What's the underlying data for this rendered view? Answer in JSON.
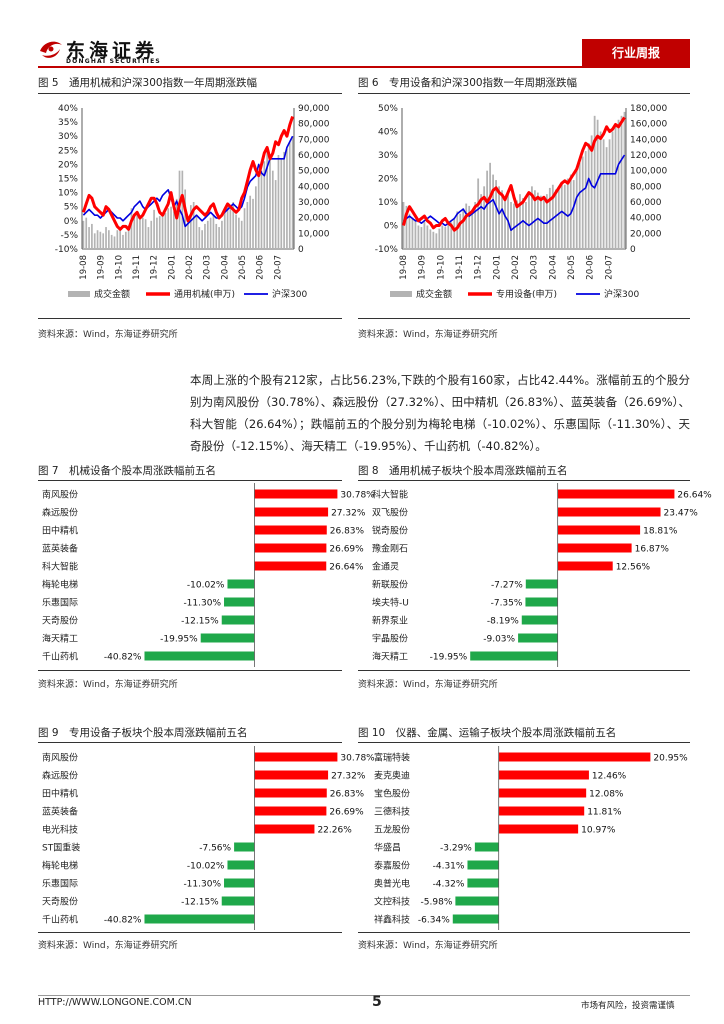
{
  "header": {
    "company_cn": "东海证券",
    "company_en": "DONGHAI SECURITIES",
    "report_type": "行业周报"
  },
  "paragraph": "本周上涨的个股有212家，占比56.23%,下跌的个股有160家，占比42.44%。涨幅前五的个股分别为南风股份（30.78%）、森远股份（27.32%）、田中精机（26.83%）、蓝英装备（26.69%）、科大智能（26.64%）；跌幅前五的个股分别为梅轮电梯（-10.02%）、乐惠国际（-11.30%）、天奇股份（-12.15%）、海天精工（-19.95%）、千山药机（-40.82%）。",
  "footer": {
    "url": "HTTP://WWW.LONGONE.COM.CN",
    "page": "5",
    "disclaimer": "市场有风险，投资需谨慎"
  },
  "colors": {
    "red": "#ff0000",
    "green": "#1fa84a",
    "blue": "#0000e0",
    "gray": "#b3b3b3",
    "accent": "#c00000"
  },
  "chart_data": [
    {
      "id": "fig5",
      "title": "图 5　通用机械和沪深300指数一年周期涨跌幅",
      "source": "资料来源：Wind，东海证券研究所",
      "type": "line",
      "x_ticks": [
        "19-08",
        "19-09",
        "19-10",
        "19-11",
        "19-12",
        "20-01",
        "20-02",
        "20-03",
        "20-04",
        "20-05",
        "20-06",
        "20-07"
      ],
      "y_left": {
        "min": -10,
        "max": 40,
        "step": 5,
        "format": "pct"
      },
      "y_right": {
        "min": 0,
        "max": 90000,
        "step": 10000,
        "format": "num"
      },
      "legend": [
        "成交金额",
        "通用机械(申万)",
        "沪深300"
      ],
      "series": [
        {
          "name": "成交金额",
          "axis": "right",
          "kind": "bar",
          "values": [
            18000,
            20000,
            14000,
            16000,
            10000,
            12000,
            11000,
            10000,
            14000,
            12000,
            9000,
            8000,
            12000,
            13000,
            9000,
            11000,
            15000,
            26000,
            22000,
            24000,
            21000,
            20000,
            19000,
            14000,
            18000,
            25000,
            20000,
            21000,
            22000,
            23000,
            26000,
            27000,
            24000,
            32000,
            50000,
            50000,
            38000,
            20000,
            28000,
            30000,
            22000,
            14000,
            12000,
            16000,
            18000,
            20000,
            22000,
            16000,
            14000,
            18000,
            24000,
            28000,
            26000,
            30000,
            22000,
            20000,
            18000,
            26000,
            30000,
            34000,
            32000,
            40000,
            48000,
            50000,
            56000,
            62000,
            58000,
            50000,
            44000,
            60000,
            58000,
            62000,
            64000,
            68000,
            72000
          ]
        },
        {
          "name": "通用机械(申万)",
          "axis": "left",
          "kind": "line",
          "values": [
            3,
            6,
            9,
            8,
            5,
            4,
            3,
            2,
            5,
            4,
            2,
            0,
            -2,
            -3,
            -2,
            -2,
            -3,
            0,
            2,
            3,
            1,
            2,
            4,
            6,
            8,
            8,
            6,
            3,
            2,
            4,
            6,
            10,
            5,
            1,
            6,
            9,
            4,
            0,
            2,
            4,
            5,
            4,
            3,
            2,
            3,
            5,
            6,
            3,
            1,
            2,
            4,
            6,
            5,
            4,
            3,
            4,
            8,
            10,
            14,
            18,
            21,
            18,
            16,
            20,
            24,
            26,
            22,
            24,
            28,
            27,
            30,
            32,
            30,
            34,
            37
          ]
        },
        {
          "name": "沪深300",
          "axis": "left",
          "kind": "line",
          "values": [
            2,
            3,
            4,
            3,
            2,
            2,
            1,
            2,
            3,
            4,
            3,
            2,
            1,
            1,
            0,
            1,
            2,
            3,
            5,
            6,
            7,
            5,
            4,
            5,
            6,
            7,
            8,
            7,
            9,
            10,
            11,
            8,
            5,
            7,
            4,
            2,
            -2,
            -1,
            0,
            1,
            2,
            1,
            0,
            1,
            2,
            3,
            2,
            1,
            1,
            2,
            3,
            4,
            5,
            6,
            5,
            4,
            5,
            8,
            12,
            14,
            15,
            16,
            20,
            17,
            16,
            19,
            22,
            22,
            22,
            22,
            22,
            22,
            26,
            28,
            30
          ]
        }
      ]
    },
    {
      "id": "fig6",
      "title": "图 6　专用设备和沪深300指数一年周期涨跌幅",
      "source": "资料来源：Wind，东海证券研究所",
      "type": "line",
      "x_ticks": [
        "19-08",
        "19-09",
        "19-10",
        "19-11",
        "19-12",
        "20-01",
        "20-02",
        "20-03",
        "20-04",
        "20-05",
        "20-06",
        "20-07"
      ],
      "y_left": {
        "min": -10,
        "max": 50,
        "step": 10,
        "format": "pct"
      },
      "y_right": {
        "min": 0,
        "max": 180000,
        "step": 20000,
        "format": "num"
      },
      "legend": [
        "成交金额",
        "专用设备(申万)",
        "沪深300"
      ],
      "series": [
        {
          "name": "成交金额",
          "axis": "right",
          "kind": "bar",
          "values": [
            60000,
            55000,
            45000,
            40000,
            38000,
            30000,
            28000,
            35000,
            30000,
            25000,
            22000,
            20000,
            26000,
            30000,
            28000,
            32000,
            34000,
            40000,
            48000,
            45000,
            52000,
            58000,
            55000,
            50000,
            60000,
            90000,
            70000,
            80000,
            100000,
            110000,
            95000,
            88000,
            80000,
            75000,
            65000,
            70000,
            60000,
            58000,
            62000,
            70000,
            65000,
            60000,
            70000,
            80000,
            75000,
            72000,
            68000,
            65000,
            70000,
            78000,
            82000,
            76000,
            80000,
            85000,
            82000,
            90000,
            95000,
            88000,
            100000,
            110000,
            118000,
            125000,
            135000,
            145000,
            170000,
            165000,
            150000,
            140000,
            130000,
            140000,
            150000,
            160000,
            165000,
            170000,
            175000
          ]
        },
        {
          "name": "专用设备(申万)",
          "axis": "left",
          "kind": "line",
          "values": [
            0,
            5,
            8,
            6,
            4,
            2,
            3,
            4,
            2,
            1,
            -1,
            0,
            0,
            2,
            3,
            1,
            0,
            -2,
            -1,
            1,
            2,
            4,
            5,
            6,
            8,
            9,
            11,
            12,
            10,
            12,
            15,
            16,
            14,
            13,
            11,
            14,
            17,
            12,
            8,
            9,
            10,
            12,
            14,
            13,
            11,
            12,
            11,
            12,
            10,
            11,
            12,
            14,
            16,
            18,
            19,
            18,
            20,
            22,
            24,
            28,
            32,
            35,
            34,
            32,
            36,
            38,
            37,
            39,
            42,
            40,
            41,
            43,
            42,
            44,
            46
          ]
        },
        {
          "name": "沪深300",
          "axis": "left",
          "kind": "line",
          "values": [
            2,
            3,
            4,
            3,
            2,
            2,
            1,
            2,
            3,
            4,
            3,
            2,
            1,
            1,
            0,
            1,
            2,
            3,
            5,
            6,
            7,
            5,
            4,
            5,
            6,
            7,
            8,
            7,
            9,
            10,
            11,
            8,
            5,
            7,
            4,
            2,
            -2,
            -1,
            0,
            1,
            2,
            1,
            0,
            1,
            2,
            3,
            2,
            1,
            1,
            2,
            3,
            4,
            5,
            6,
            5,
            4,
            5,
            8,
            12,
            14,
            15,
            16,
            20,
            17,
            16,
            19,
            22,
            22,
            22,
            22,
            22,
            22,
            26,
            28,
            30
          ]
        }
      ]
    },
    {
      "id": "fig7",
      "title": "图 7　机械设备个股本周涨跌幅前五名",
      "source": "资料来源：Wind，东海证券研究所",
      "type": "bar",
      "scale": {
        "min": -41,
        "max": 31
      },
      "categories": [
        "南风股份",
        "森远股份",
        "田中精机",
        "蓝英装备",
        "科大智能",
        "梅轮电梯",
        "乐惠国际",
        "天奇股份",
        "海天精工",
        "千山药机"
      ],
      "values": [
        30.78,
        27.32,
        26.83,
        26.69,
        26.64,
        -10.02,
        -11.3,
        -12.15,
        -19.95,
        -40.82
      ],
      "labels": [
        "30.78%",
        "27.32%",
        "26.83%",
        "26.69%",
        "26.64%",
        "-10.02%",
        "-11.30%",
        "-12.15%",
        "-19.95%",
        "-40.82%"
      ]
    },
    {
      "id": "fig8",
      "title": "图 8　通用机械子板块个股本周涨跌幅前五名",
      "source": "资料来源：Wind，东海证券研究所",
      "type": "bar",
      "scale": {
        "min": -20,
        "max": 27
      },
      "categories": [
        "科大智能",
        "双飞股份",
        "锐奇股份",
        "豫金刚石",
        "金通灵",
        "新联股份",
        "埃夫特-U",
        "新界泵业",
        "宇晶股份",
        "海天精工"
      ],
      "values": [
        26.64,
        23.47,
        18.81,
        16.87,
        12.56,
        -7.27,
        -7.35,
        -8.19,
        -9.03,
        -19.95
      ],
      "labels": [
        "26.64%",
        "23.47%",
        "18.81%",
        "16.87%",
        "12.56%",
        "-7.27%",
        "-7.35%",
        "-8.19%",
        "-9.03%",
        "-19.95%"
      ]
    },
    {
      "id": "fig9",
      "title": "图 9　专用设备子板块个股本周涨跌幅前五名",
      "source": "资料来源：Wind，东海证券研究所",
      "type": "bar",
      "scale": {
        "min": -41,
        "max": 31
      },
      "categories": [
        "南风股份",
        "森远股份",
        "田中精机",
        "蓝英装备",
        "电光科技",
        "ST国重装",
        "梅轮电梯",
        "乐惠国际",
        "天奇股份",
        "千山药机"
      ],
      "values": [
        30.78,
        27.32,
        26.83,
        26.69,
        22.26,
        -7.56,
        -10.02,
        -11.3,
        -12.15,
        -40.82
      ],
      "labels": [
        "30.78%",
        "27.32%",
        "26.83%",
        "26.69%",
        "22.26%",
        "-7.56%",
        "-10.02%",
        "-11.30%",
        "-12.15%",
        "-40.82%"
      ]
    },
    {
      "id": "fig10",
      "title": "图 10　仪器、金属、运输子板块个股本周涨跌幅前五名",
      "source": "资料来源：Wind，东海证券研究所",
      "type": "bar",
      "scale": {
        "min": -7,
        "max": 22
      },
      "categories": [
        "富瑞特装",
        "麦克奥迪",
        "宝色股份",
        "三德科技",
        "五龙股份",
        "华盛昌",
        "泰嘉股份",
        "奥普光电",
        "文控科技",
        "祥鑫科技"
      ],
      "values": [
        20.95,
        12.46,
        12.08,
        11.81,
        10.97,
        -3.29,
        -4.31,
        -4.32,
        -5.98,
        -6.34
      ],
      "labels": [
        "20.95%",
        "12.46%",
        "12.08%",
        "11.81%",
        "10.97%",
        "-3.29%",
        "-4.31%",
        "-4.32%",
        "-5.98%",
        "-6.34%"
      ]
    }
  ]
}
